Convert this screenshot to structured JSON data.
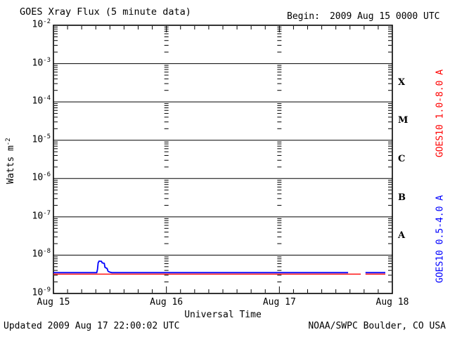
{
  "header": {
    "title": "GOES Xray Flux (5 minute data)",
    "begin_label": "Begin:",
    "begin_value": "2009 Aug 15 0000 UTC"
  },
  "footer": {
    "updated": "Updated 2009 Aug 17 22:00:02 UTC",
    "credit": "NOAA/SWPC Boulder, CO USA"
  },
  "colors": {
    "long_channel": "#ff0000",
    "short_channel": "#0000ff",
    "axis": "#000000",
    "background": "#ffffff"
  },
  "chart_data": {
    "type": "line",
    "title": "GOES Xray Flux (5 minute data)",
    "x_axis": {
      "label": "Universal Time",
      "tick_labels": [
        "Aug 15",
        "Aug 16",
        "Aug 17",
        "Aug 18"
      ],
      "start": "2009 Aug 15 0000 UTC",
      "span_hours": 72,
      "major_tick_interval_hours": 24,
      "minor_tick_interval_hours": 3
    },
    "y_axis": {
      "label_base": "Watts m",
      "label_exponent": "-2",
      "scale": "log10",
      "unit": "W/m^2",
      "exponents": [
        -2,
        -3,
        -4,
        -5,
        -6,
        -7,
        -8,
        -9
      ],
      "ylim": [
        1e-09,
        0.01
      ],
      "grid": "solid horizontal line at each decade; log minor ticks at frame edges and at interior day boundaries"
    },
    "flare_classes": [
      {
        "letter": "X",
        "band_lower_exponent": -4
      },
      {
        "letter": "M",
        "band_lower_exponent": -5
      },
      {
        "letter": "C",
        "band_lower_exponent": -6
      },
      {
        "letter": "B",
        "band_lower_exponent": -7
      },
      {
        "letter": "A",
        "band_lower_exponent": -8
      }
    ],
    "series": [
      {
        "name": "GOES10 1.0-8.0 A",
        "color": "#ff0000",
        "segments": [
          [
            [
              0,
              3.2e-09
            ],
            [
              65.3,
              3.2e-09
            ]
          ],
          [
            [
              66.3,
              3.2e-09
            ],
            [
              70.5,
              3.2e-09
            ]
          ]
        ]
      },
      {
        "name": "GOES10 0.5-4.0 A",
        "color": "#0000ff",
        "segments": [
          [
            [
              0,
              3.5e-09
            ],
            [
              9.2,
              3.5e-09
            ],
            [
              9.35,
              4.2e-09
            ],
            [
              9.5,
              6.3e-09
            ],
            [
              9.7,
              7e-09
            ],
            [
              10.2,
              6.9e-09
            ],
            [
              10.35,
              6.3e-09
            ],
            [
              10.8,
              6.1e-09
            ],
            [
              10.95,
              4.8e-09
            ],
            [
              11.4,
              4.5e-09
            ],
            [
              11.6,
              3.8e-09
            ],
            [
              12.0,
              3.6e-09
            ],
            [
              12.4,
              3.5e-09
            ],
            [
              62.6,
              3.5e-09
            ]
          ],
          [
            [
              66.3,
              3.5e-09
            ],
            [
              70.5,
              3.5e-09
            ]
          ]
        ]
      }
    ]
  }
}
